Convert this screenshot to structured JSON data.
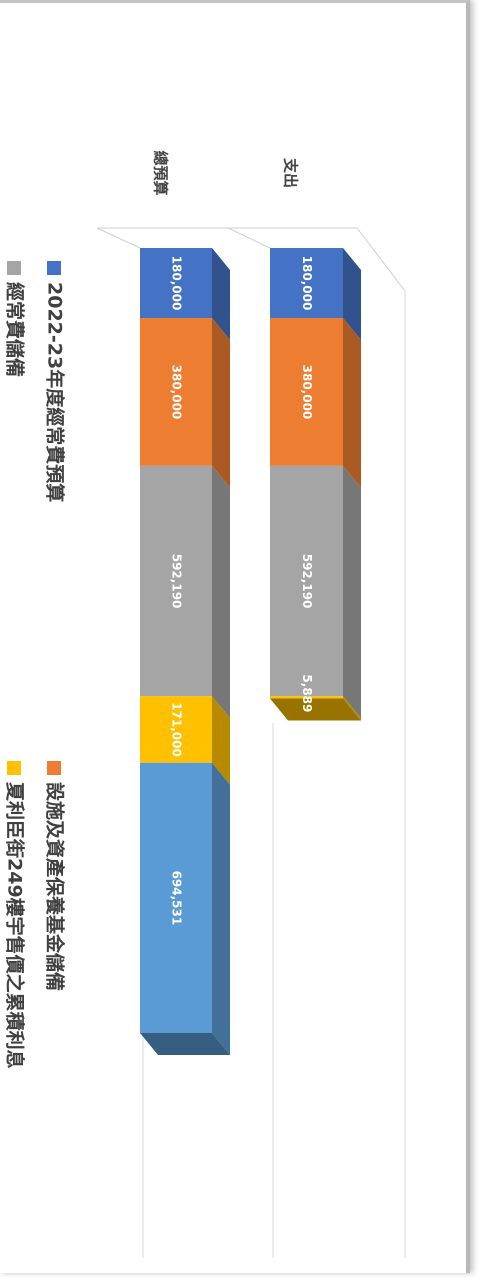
{
  "chart_data": {
    "type": "bar",
    "stacked": true,
    "orientation": "horizontal-rotated",
    "three_d": true,
    "categories": [
      "總預算",
      "支出"
    ],
    "series": [
      {
        "name": "2022-23年度經常費預算",
        "color": "#4472c4",
        "values": [
          180000,
          180000
        ],
        "labels": [
          "180,000",
          "180,000"
        ]
      },
      {
        "name": "設施及資產保養基金儲備",
        "color": "#ed7d31",
        "values": [
          380000,
          380000
        ],
        "labels": [
          "380,000",
          "380,000"
        ]
      },
      {
        "name": "經常費儲備",
        "color": "#a5a5a5",
        "values": [
          592190,
          592190
        ],
        "labels": [
          "592,190",
          "592,190"
        ]
      },
      {
        "name": "夏利臣街249樓宇售價之累積利息",
        "color": "#ffc000",
        "values": [
          171000,
          5889
        ],
        "labels": [
          "171,000",
          "5,889"
        ]
      },
      {
        "name": "",
        "color": "#5b9bd5",
        "values": [
          694531,
          null
        ],
        "labels": [
          "694,531",
          ""
        ]
      }
    ],
    "legend_position": "bottom",
    "grid": true
  }
}
